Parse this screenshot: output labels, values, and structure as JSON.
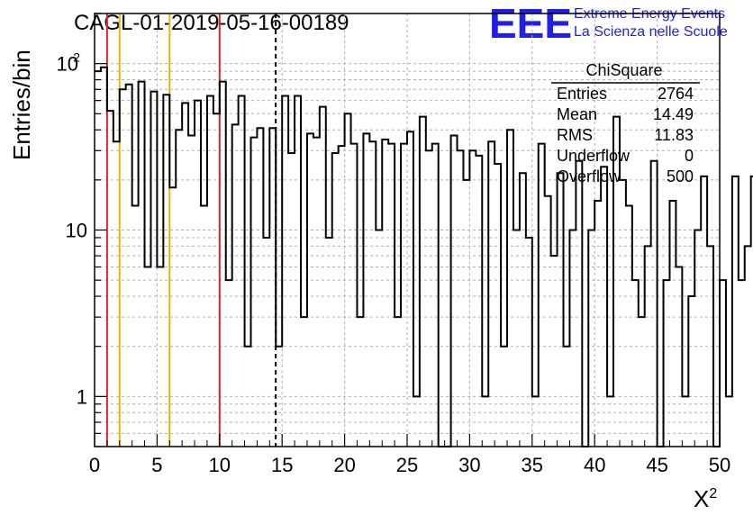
{
  "chart_data": {
    "type": "bar",
    "subtype": "step-histogram",
    "title": "CAGL-01-2019-05-16-00189",
    "xlabel": "X",
    "xlabel_superscript": "2",
    "ylabel": "Entries/bin",
    "xlim": [
      0,
      50
    ],
    "ylim": [
      0.5,
      200
    ],
    "ylog": true,
    "grid": true,
    "bin_width": 0.5,
    "x_ticks": [
      "0",
      "5",
      "10",
      "15",
      "20",
      "25",
      "30",
      "35",
      "40",
      "45",
      "50"
    ],
    "y_ticks": [
      {
        "value": 1,
        "base": "1",
        "exp": ""
      },
      {
        "value": 10,
        "base": "10",
        "exp": ""
      },
      {
        "value": 100,
        "base": "10",
        "exp": "2"
      }
    ],
    "values": [
      90,
      95,
      52,
      34,
      70,
      75,
      14,
      78,
      6,
      68,
      6,
      65,
      18,
      40,
      58,
      37,
      60,
      14,
      64,
      50,
      78,
      5,
      43,
      64,
      2,
      36,
      41,
      9,
      41,
      2,
      64,
      29,
      64,
      3,
      38,
      36,
      55,
      9,
      29,
      32,
      50,
      33,
      3,
      38,
      34,
      10,
      35,
      33,
      3,
      33,
      39,
      1,
      48,
      30,
      33,
      0,
      0,
      37,
      30,
      20,
      30,
      28,
      1,
      34,
      25,
      2,
      40,
      10,
      22,
      9,
      1,
      33,
      16,
      7,
      22,
      2,
      10,
      26,
      0,
      10,
      15,
      24,
      1,
      48,
      20,
      14,
      5,
      3,
      8,
      26,
      0,
      5,
      15,
      6,
      1,
      4,
      10,
      21,
      8,
      0,
      5,
      1,
      21,
      5,
      8,
      21,
      0,
      9,
      1,
      4,
      1,
      5,
      9,
      5,
      0,
      5,
      21,
      5,
      16,
      5,
      4,
      0,
      1,
      4,
      3,
      4,
      21,
      4,
      3,
      4,
      7,
      1,
      5,
      3,
      5,
      7,
      1,
      5,
      3,
      4,
      7,
      9,
      5,
      21,
      2,
      0,
      5,
      3,
      5,
      1,
      0,
      3,
      1,
      5,
      0,
      6,
      2,
      5,
      1,
      0,
      4,
      3,
      4,
      5,
      0,
      4,
      1,
      3,
      1,
      4,
      3,
      4,
      0,
      0,
      3,
      0,
      4,
      0,
      5,
      0,
      3,
      0,
      4,
      0,
      5,
      0,
      3,
      0,
      5,
      0,
      3,
      0,
      5,
      0,
      7,
      0,
      5,
      0,
      5,
      0
    ],
    "reference_lines": [
      {
        "x": 1,
        "color": "#e0261c",
        "style": "solid"
      },
      {
        "x": 2,
        "color": "#f0b400",
        "style": "solid"
      },
      {
        "x": 6,
        "color": "#f0b400",
        "style": "solid"
      },
      {
        "x": 10,
        "color": "#e0261c",
        "style": "solid"
      },
      {
        "x": 14.49,
        "color": "#000000",
        "style": "dashed"
      }
    ],
    "stats": {
      "title": "ChiSquare",
      "rows": [
        {
          "label": "Entries",
          "value": "2764"
        },
        {
          "label": "Mean",
          "value": "14.49"
        },
        {
          "label": "RMS",
          "value": "11.83"
        },
        {
          "label": "Underflow",
          "value": "0"
        },
        {
          "label": "Overflow",
          "value": "500"
        }
      ]
    }
  },
  "logo": {
    "mark": "EEE",
    "line1": "Extreme Energy Events",
    "line2": "La Scienza nelle Scuole"
  },
  "colors": {
    "histogram": "#000000",
    "grid": "#b0b0b0",
    "logo": "#1f1fe6"
  }
}
